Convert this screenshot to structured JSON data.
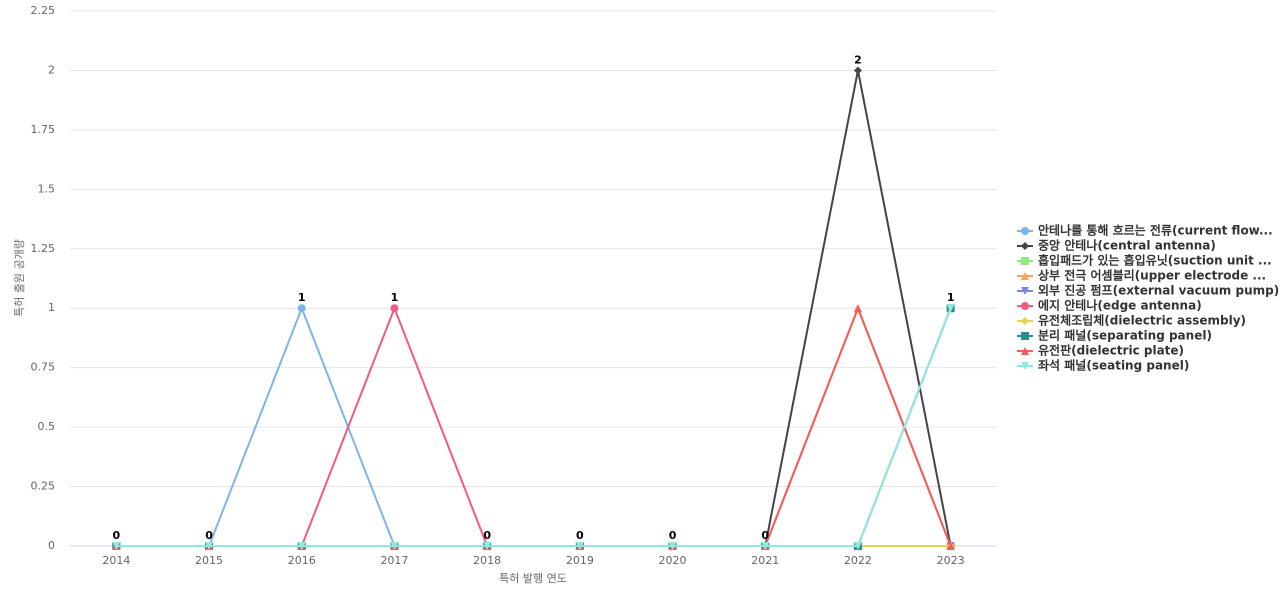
{
  "chart_data": {
    "type": "line",
    "x_label": "특허 발행 연도",
    "y_label": "특허 출원 공개량",
    "categories": [
      "2014",
      "2015",
      "2016",
      "2017",
      "2018",
      "2019",
      "2020",
      "2021",
      "2022",
      "2023"
    ],
    "ylim": [
      0,
      2.25
    ],
    "yticks": [
      0,
      0.25,
      0.5,
      0.75,
      1,
      1.25,
      1.5,
      1.75,
      2,
      2.25
    ],
    "grid": true,
    "legend": "right",
    "series": [
      {
        "name": "안테나를 통해 흐르는 전류(current flow...",
        "color": "#7cb5ec",
        "marker": "circle",
        "values": [
          0,
          0,
          1,
          0,
          0,
          0,
          0,
          0,
          0,
          0
        ]
      },
      {
        "name": "중앙 안테나(central antenna)",
        "color": "#434348",
        "marker": "diamond",
        "values": [
          0,
          0,
          0,
          0,
          0,
          0,
          0,
          0,
          2,
          0
        ]
      },
      {
        "name": "흡입패드가 있는 흡입유닛(suction unit ...",
        "color": "#90ed7d",
        "marker": "square",
        "values": [
          0,
          0,
          0,
          0,
          0,
          0,
          0,
          0,
          0,
          0
        ]
      },
      {
        "name": "상부 전극 어셈블리(upper electrode ...",
        "color": "#f7a35c",
        "marker": "triangle",
        "values": [
          0,
          0,
          0,
          0,
          0,
          0,
          0,
          0,
          1,
          0
        ]
      },
      {
        "name": "외부 진공 펌프(external vacuum pump)",
        "color": "#8085e9",
        "marker": "triangle-down",
        "values": [
          0,
          0,
          0,
          0,
          0,
          0,
          0,
          0,
          0,
          0
        ]
      },
      {
        "name": "에지 안테나(edge antenna)",
        "color": "#f15c80",
        "marker": "circle",
        "values": [
          0,
          0,
          0,
          1,
          0,
          0,
          0,
          0,
          0,
          0
        ]
      },
      {
        "name": "유전체조립체(dielectric assembly)",
        "color": "#e4d354",
        "marker": "diamond",
        "values": [
          0,
          0,
          0,
          0,
          0,
          0,
          0,
          0,
          0,
          0
        ]
      },
      {
        "name": "분리 패널(separating panel)",
        "color": "#2b908f",
        "marker": "square",
        "values": [
          0,
          0,
          0,
          0,
          0,
          0,
          0,
          0,
          0,
          1
        ]
      },
      {
        "name": "유전판(dielectric plate)",
        "color": "#f45b5b",
        "marker": "triangle",
        "values": [
          0,
          0,
          0,
          0,
          0,
          0,
          0,
          0,
          1,
          0
        ]
      },
      {
        "name": "좌석 패널(seating panel)",
        "color": "#91e8e1",
        "marker": "triangle-down",
        "values": [
          0,
          0,
          0,
          0,
          0,
          0,
          0,
          0,
          0,
          1
        ]
      }
    ]
  }
}
